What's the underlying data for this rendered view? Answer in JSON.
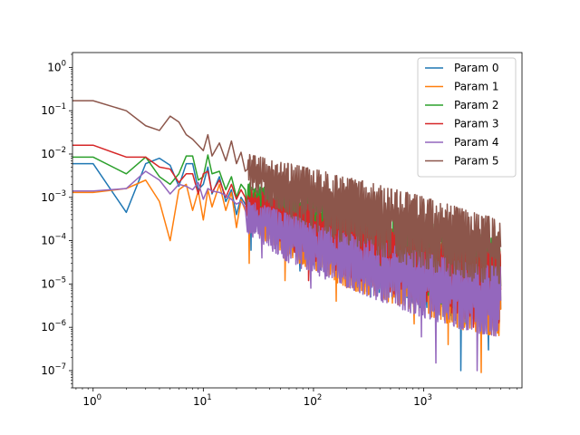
{
  "chart_data": {
    "type": "line",
    "title": "",
    "xlabel": "",
    "ylabel": "",
    "xscale": "log",
    "yscale": "log",
    "xlim": [
      0.65,
      7800
    ],
    "ylim": [
      4e-08,
      2.2
    ],
    "grid": false,
    "legend_position": "top-right",
    "x_ticks": [
      {
        "value": 1,
        "label": "10",
        "exp": "0"
      },
      {
        "value": 10,
        "label": "10",
        "exp": "1"
      },
      {
        "value": 100,
        "label": "10",
        "exp": "2"
      },
      {
        "value": 1000,
        "label": "10",
        "exp": "3"
      }
    ],
    "y_ticks": [
      {
        "value": 1e-07,
        "label": "10",
        "exp": "−7"
      },
      {
        "value": 1e-06,
        "label": "10",
        "exp": "−6"
      },
      {
        "value": 1e-05,
        "label": "10",
        "exp": "−5"
      },
      {
        "value": 0.0001,
        "label": "10",
        "exp": "−4"
      },
      {
        "value": 0.001,
        "label": "10",
        "exp": "−3"
      },
      {
        "value": 0.01,
        "label": "10",
        "exp": "−2"
      },
      {
        "value": 0.1,
        "label": "10",
        "exp": "−1"
      },
      {
        "value": 1,
        "label": "10",
        "exp": "0"
      }
    ],
    "series": [
      {
        "name": "Param 0",
        "color": "#1f77b4",
        "head": [
          [
            0.01,
            0.006
          ],
          [
            1,
            0.006
          ],
          [
            2,
            0.00045
          ],
          [
            3,
            0.006
          ],
          [
            4,
            0.008
          ],
          [
            5,
            0.0055
          ],
          [
            6,
            0.0018
          ],
          [
            7,
            0.006
          ],
          [
            8,
            0.006
          ],
          [
            9,
            0.0015
          ],
          [
            10,
            0.002
          ],
          [
            11,
            0.005
          ],
          [
            12,
            0.0012
          ],
          [
            14,
            0.003
          ],
          [
            16,
            0.0008
          ],
          [
            18,
            0.0015
          ],
          [
            20,
            0.0004
          ],
          [
            22,
            0.001
          ],
          [
            24,
            0.0007
          ]
        ],
        "envelope": [
          [
            25,
            0.0012,
            0.00025
          ],
          [
            60,
            0.0006,
            5e-05
          ],
          [
            200,
            0.00025,
            1e-05
          ],
          [
            800,
            9e-05,
            3e-06
          ],
          [
            2500,
            5e-05,
            1e-06
          ],
          [
            5000,
            4e-05,
            8e-07
          ]
        ],
        "dips": [
          [
            27,
            6e-05
          ],
          [
            75,
            2e-05
          ],
          [
            330,
            5e-06
          ],
          [
            1350,
            1.5e-06
          ],
          [
            2150,
            1e-07
          ],
          [
            3900,
            3e-07
          ]
        ]
      },
      {
        "name": "Param 1",
        "color": "#ff7f0e",
        "head": [
          [
            0.01,
            0.0013
          ],
          [
            1,
            0.0013
          ],
          [
            2,
            0.0016
          ],
          [
            3,
            0.0025
          ],
          [
            4,
            0.0008
          ],
          [
            5,
            0.0001
          ],
          [
            6,
            0.0015
          ],
          [
            7,
            0.002
          ],
          [
            8,
            0.0005
          ],
          [
            9,
            0.0014
          ],
          [
            10,
            0.0003
          ],
          [
            11,
            0.0015
          ],
          [
            12,
            0.0006
          ],
          [
            14,
            0.002
          ],
          [
            16,
            0.0005
          ],
          [
            18,
            0.0013
          ],
          [
            20,
            0.0002
          ],
          [
            22,
            0.0009
          ],
          [
            24,
            0.0005
          ]
        ],
        "envelope": [
          [
            25,
            0.001,
            0.0002
          ],
          [
            60,
            0.0005,
            4e-05
          ],
          [
            200,
            0.0002,
            8e-06
          ],
          [
            800,
            8e-05,
            2.5e-06
          ],
          [
            2500,
            4e-05,
            8e-07
          ],
          [
            5000,
            3.5e-05,
            6e-07
          ]
        ],
        "dips": [
          [
            26,
            3e-05
          ],
          [
            55,
            1.2e-05
          ],
          [
            160,
            4e-06
          ],
          [
            820,
            1.2e-06
          ],
          [
            1650,
            4e-07
          ],
          [
            3300,
            9e-08
          ]
        ]
      },
      {
        "name": "Param 2",
        "color": "#2ca02c",
        "head": [
          [
            0.01,
            0.0085
          ],
          [
            1,
            0.0085
          ],
          [
            2,
            0.0035
          ],
          [
            3,
            0.0085
          ],
          [
            4,
            0.003
          ],
          [
            5,
            0.002
          ],
          [
            6,
            0.0035
          ],
          [
            7,
            0.009
          ],
          [
            8,
            0.009
          ],
          [
            9,
            0.0025
          ],
          [
            10,
            0.003
          ],
          [
            11,
            0.0095
          ],
          [
            12,
            0.0035
          ],
          [
            14,
            0.004
          ],
          [
            16,
            0.0015
          ],
          [
            18,
            0.003
          ],
          [
            20,
            0.001
          ],
          [
            22,
            0.002
          ],
          [
            24,
            0.0015
          ]
        ],
        "envelope": [
          [
            25,
            0.0022,
            0.0004
          ],
          [
            60,
            0.0015,
            0.0001
          ],
          [
            200,
            0.0008,
            2e-05
          ],
          [
            800,
            0.00035,
            6e-06
          ],
          [
            2500,
            0.00015,
            2e-06
          ],
          [
            5000,
            0.00012,
            1.5e-06
          ]
        ],
        "dips": [
          [
            48,
            8e-05
          ],
          [
            210,
            1.5e-05
          ],
          [
            900,
            3e-06
          ],
          [
            2400,
            1.2e-06
          ]
        ]
      },
      {
        "name": "Param 3",
        "color": "#d62728",
        "head": [
          [
            0.01,
            0.016
          ],
          [
            1,
            0.016
          ],
          [
            2,
            0.0085
          ],
          [
            3,
            0.0085
          ],
          [
            4,
            0.005
          ],
          [
            5,
            0.0045
          ],
          [
            6,
            0.0022
          ],
          [
            7,
            0.0035
          ],
          [
            8,
            0.0035
          ],
          [
            9,
            0.0012
          ],
          [
            10,
            0.0035
          ],
          [
            11,
            0.004
          ],
          [
            12,
            0.0013
          ],
          [
            14,
            0.0025
          ],
          [
            16,
            0.001
          ],
          [
            18,
            0.002
          ],
          [
            20,
            0.0009
          ],
          [
            22,
            0.0015
          ],
          [
            24,
            0.001
          ]
        ],
        "envelope": [
          [
            25,
            0.0016,
            0.0003
          ],
          [
            60,
            0.0009,
            6e-05
          ],
          [
            200,
            0.0004,
            1.5e-05
          ],
          [
            800,
            0.00015,
            4e-06
          ],
          [
            2500,
            7e-05,
            1.5e-06
          ],
          [
            5000,
            6e-05,
            1.2e-06
          ]
        ],
        "dips": [
          [
            90,
            1.2e-05
          ],
          [
            380,
            8e-06
          ],
          [
            1250,
            2.5e-06
          ],
          [
            2800,
            1e-06
          ]
        ]
      },
      {
        "name": "Param 4",
        "color": "#9467bd",
        "head": [
          [
            0.01,
            0.0014
          ],
          [
            1,
            0.0014
          ],
          [
            2,
            0.0016
          ],
          [
            3,
            0.004
          ],
          [
            4,
            0.0025
          ],
          [
            5,
            0.0012
          ],
          [
            6,
            0.002
          ],
          [
            7,
            0.0018
          ],
          [
            8,
            0.0015
          ],
          [
            9,
            0.0022
          ],
          [
            10,
            0.0009
          ],
          [
            11,
            0.0016
          ],
          [
            12,
            0.0014
          ],
          [
            14,
            0.0013
          ],
          [
            16,
            0.0011
          ],
          [
            18,
            0.0009
          ],
          [
            20,
            0.0007
          ],
          [
            22,
            0.0008
          ],
          [
            24,
            0.0006
          ]
        ],
        "envelope": [
          [
            25,
            0.0009,
            0.00015
          ],
          [
            60,
            0.0004,
            3e-05
          ],
          [
            200,
            0.00015,
            8e-06
          ],
          [
            800,
            6e-05,
            2e-06
          ],
          [
            2500,
            3e-05,
            8e-07
          ],
          [
            5000,
            2.5e-05,
            6e-07
          ]
        ],
        "dips": [
          [
            34,
            4e-05
          ],
          [
            95,
            8e-06
          ],
          [
            270,
            1.5e-05
          ],
          [
            960,
            6e-07
          ],
          [
            1280,
            1.5e-07
          ],
          [
            3000,
            1e-07
          ]
        ]
      },
      {
        "name": "Param 5",
        "color": "#8c564b",
        "head": [
          [
            0.01,
            0.17
          ],
          [
            1,
            0.17
          ],
          [
            2,
            0.1
          ],
          [
            3,
            0.045
          ],
          [
            4,
            0.035
          ],
          [
            5,
            0.075
          ],
          [
            6,
            0.055
          ],
          [
            7,
            0.028
          ],
          [
            8,
            0.022
          ],
          [
            9,
            0.016
          ],
          [
            10,
            0.012
          ],
          [
            11,
            0.028
          ],
          [
            12,
            0.009
          ],
          [
            14,
            0.018
          ],
          [
            16,
            0.007
          ],
          [
            18,
            0.02
          ],
          [
            20,
            0.006
          ],
          [
            22,
            0.011
          ],
          [
            24,
            0.004
          ]
        ],
        "envelope": [
          [
            25,
            0.01,
            0.0015
          ],
          [
            60,
            0.006,
            0.0003
          ],
          [
            200,
            0.003,
            8e-05
          ],
          [
            800,
            0.0012,
            2.5e-05
          ],
          [
            2500,
            0.0005,
            1.2e-05
          ],
          [
            5000,
            0.0003,
            1e-05
          ]
        ],
        "dips": [
          [
            130,
            0.00015
          ],
          [
            500,
            5e-05
          ],
          [
            1600,
            2e-05
          ],
          [
            4000,
            1.2e-05
          ]
        ]
      }
    ]
  }
}
